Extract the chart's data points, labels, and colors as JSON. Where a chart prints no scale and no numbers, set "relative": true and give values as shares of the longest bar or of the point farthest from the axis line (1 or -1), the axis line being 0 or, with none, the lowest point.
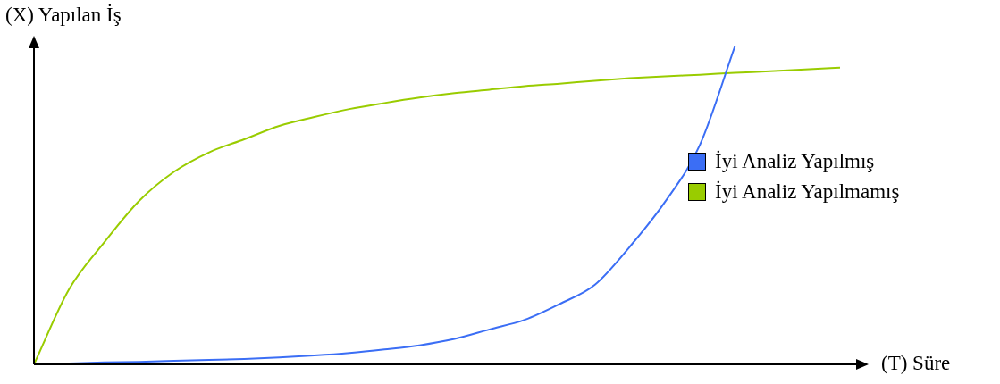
{
  "chart_data": {
    "type": "line",
    "relative": true,
    "xlabel": "(T) Süre",
    "ylabel": "(X) Yapılan İş",
    "legend": "right",
    "marker": "none",
    "line_style": "solid",
    "categories": [
      null,
      null,
      null,
      null,
      null,
      null,
      null,
      null,
      null,
      null,
      null,
      null,
      null,
      null,
      null,
      null,
      null,
      null,
      null,
      null,
      null,
      null,
      null,
      null
    ],
    "series": [
      {
        "name": "İyi Analiz Yapılmış",
        "color": "#3b6ef5",
        "values": [
          0,
          0.003,
          0.006,
          0.008,
          0.011,
          0.014,
          0.017,
          0.022,
          0.028,
          0.036,
          0.047,
          0.06,
          0.08,
          0.11,
          0.14,
          0.19,
          0.25,
          0.37,
          0.51,
          0.69,
          1,
          null,
          null,
          null
        ]
      },
      {
        "name": "İyi Analiz Yapılmamış",
        "color": "#99cc00",
        "values": [
          0,
          0.236,
          0.383,
          0.514,
          0.606,
          0.667,
          0.708,
          0.75,
          0.778,
          0.803,
          0.822,
          0.839,
          0.853,
          0.864,
          0.875,
          0.883,
          0.892,
          0.9,
          0.906,
          0.911,
          0.917,
          0.922,
          0.928,
          0.933
        ]
      }
    ]
  }
}
